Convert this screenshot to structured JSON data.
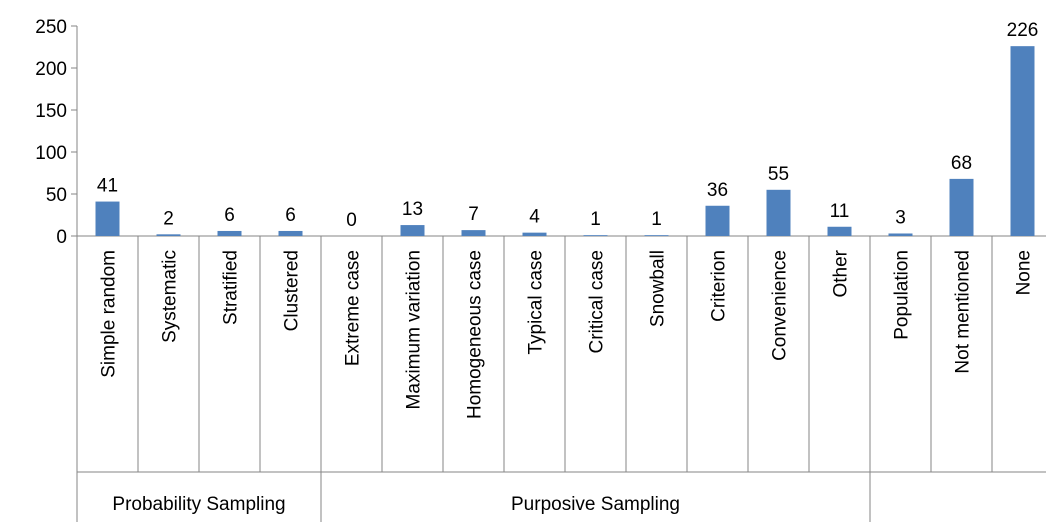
{
  "chart_data": {
    "type": "bar",
    "title": "",
    "xlabel": "",
    "ylabel": "",
    "ylim": [
      0,
      250
    ],
    "yticks": [
      0,
      50,
      100,
      150,
      200,
      250
    ],
    "grid": false,
    "legend": "none",
    "bar_color": "#4F81BD",
    "categories": [
      "Simple random",
      "Systematic",
      "Stratified",
      "Clustered",
      "Extreme case",
      "Maximum variation",
      "Homogeneous case",
      "Typical case",
      "Critical case",
      "Snowball",
      "Criterion",
      "Convenience",
      "Other",
      "Population",
      "Not mentioned",
      "None"
    ],
    "values": [
      41,
      2,
      6,
      6,
      0,
      13,
      7,
      4,
      1,
      1,
      36,
      55,
      11,
      3,
      68,
      226
    ],
    "groups": [
      {
        "label": "Probability Sampling",
        "start": 0,
        "end": 3
      },
      {
        "label": "Purposive Sampling",
        "start": 4,
        "end": 12
      },
      {
        "label": "",
        "start": 13,
        "end": 15
      }
    ]
  }
}
